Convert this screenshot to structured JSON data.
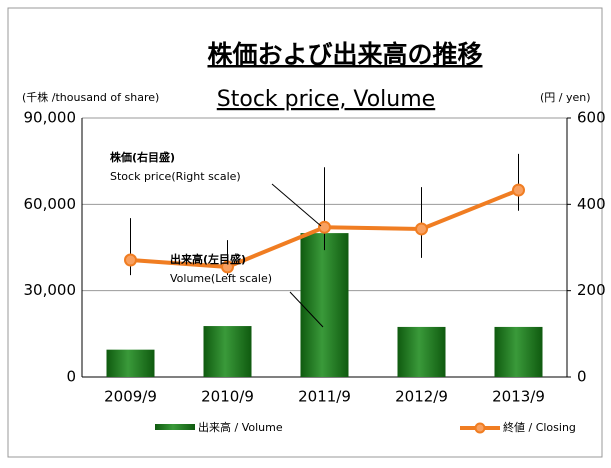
{
  "chart_data": {
    "type": "bar-line",
    "title": "株価および出来高の推移",
    "subtitle": "Stock price, Volume",
    "y_label": "(千株 /thousand of share)",
    "y2_label": "(円 / yen)",
    "categories": [
      "2009/9",
      "2010/9",
      "2011/9",
      "2012/9",
      "2013/9"
    ],
    "series": [
      {
        "name": "出来高 / Volume",
        "type": "bar",
        "color": "#1e7a1e",
        "values": [
          9500,
          17700,
          50000,
          17400,
          17400
        ]
      },
      {
        "name": "終値 / Closing",
        "type": "line",
        "axis": "y2",
        "color": "#f07d22",
        "values": [
          271,
          255,
          347,
          343,
          433
        ],
        "high": [
          368,
          317,
          486,
          440,
          517
        ],
        "low": [
          236,
          236,
          294,
          276,
          385
        ]
      }
    ],
    "annotations": [
      {
        "lines": [
          "株価(右目盛)",
          "Stock price(Right scale)"
        ]
      },
      {
        "lines": [
          "出来高(左目盛)",
          "Volume(Left scale)"
        ]
      }
    ],
    "ylim": [
      0,
      90000
    ],
    "yticks": [
      0,
      {
        "value": 30000,
        "label": "30,000"
      },
      {
        "value": 60000,
        "label": "60,000"
      },
      {
        "value": 90000,
        "label": "90,000"
      }
    ],
    "y2lim": [
      0,
      600
    ],
    "y2ticks": [
      0,
      200,
      400,
      600
    ],
    "grid": true
  }
}
